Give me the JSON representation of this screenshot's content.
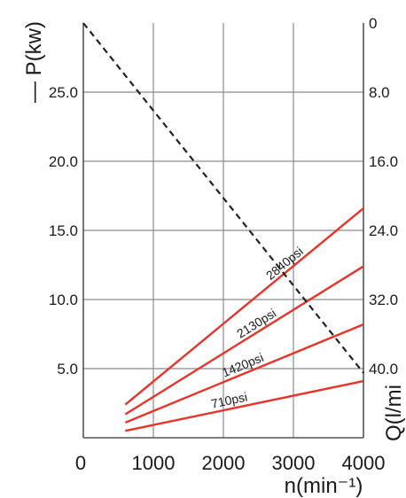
{
  "chart_data": {
    "type": "line",
    "title": "",
    "xlabel": "n(min⁻¹)",
    "ylabel_left": "— P(kw)",
    "ylabel_right": "Q(l/min)",
    "ylabel_right_clipped": "Q(l/mi",
    "xlim": [
      0,
      4000
    ],
    "ylim_left": [
      0,
      30
    ],
    "ylim_right": [
      0,
      48
    ],
    "right_axis_inverted": true,
    "grid": true,
    "x_ticks": [
      "0",
      "1000",
      "2000",
      "3000",
      "4000"
    ],
    "y_left_ticks": [
      {
        "value": 25,
        "label": "25.0"
      },
      {
        "value": 20,
        "label": "20.0"
      },
      {
        "value": 15,
        "label": "15.0"
      },
      {
        "value": 10,
        "label": "10.0"
      },
      {
        "value": 5,
        "label": "5.0"
      }
    ],
    "y_right_ticks": [
      {
        "value": 0,
        "label": "0"
      },
      {
        "value": 8,
        "label": "8.0"
      },
      {
        "value": 16,
        "label": "16.0"
      },
      {
        "value": 24,
        "label": "24.0"
      },
      {
        "value": 32,
        "label": "32.0"
      },
      {
        "value": 40,
        "label": "40.0"
      }
    ],
    "series": [
      {
        "name": "2840psi",
        "axis": "left",
        "color": "#e8332a",
        "x": [
          600,
          4000
        ],
        "y": [
          2.4,
          16.6
        ]
      },
      {
        "name": "2130psi",
        "axis": "left",
        "color": "#e8332a",
        "x": [
          600,
          4000
        ],
        "y": [
          1.7,
          12.4
        ]
      },
      {
        "name": "1420psi",
        "axis": "left",
        "color": "#e8332a",
        "x": [
          600,
          4000
        ],
        "y": [
          1.1,
          8.2
        ]
      },
      {
        "name": "710psi",
        "axis": "left",
        "color": "#e8332a",
        "x": [
          600,
          4000
        ],
        "y": [
          0.5,
          4.1
        ]
      },
      {
        "name": "",
        "axis": "right",
        "color": "#222222",
        "dashed": true,
        "x": [
          0,
          4000
        ],
        "y": [
          0,
          40.5
        ]
      }
    ]
  }
}
